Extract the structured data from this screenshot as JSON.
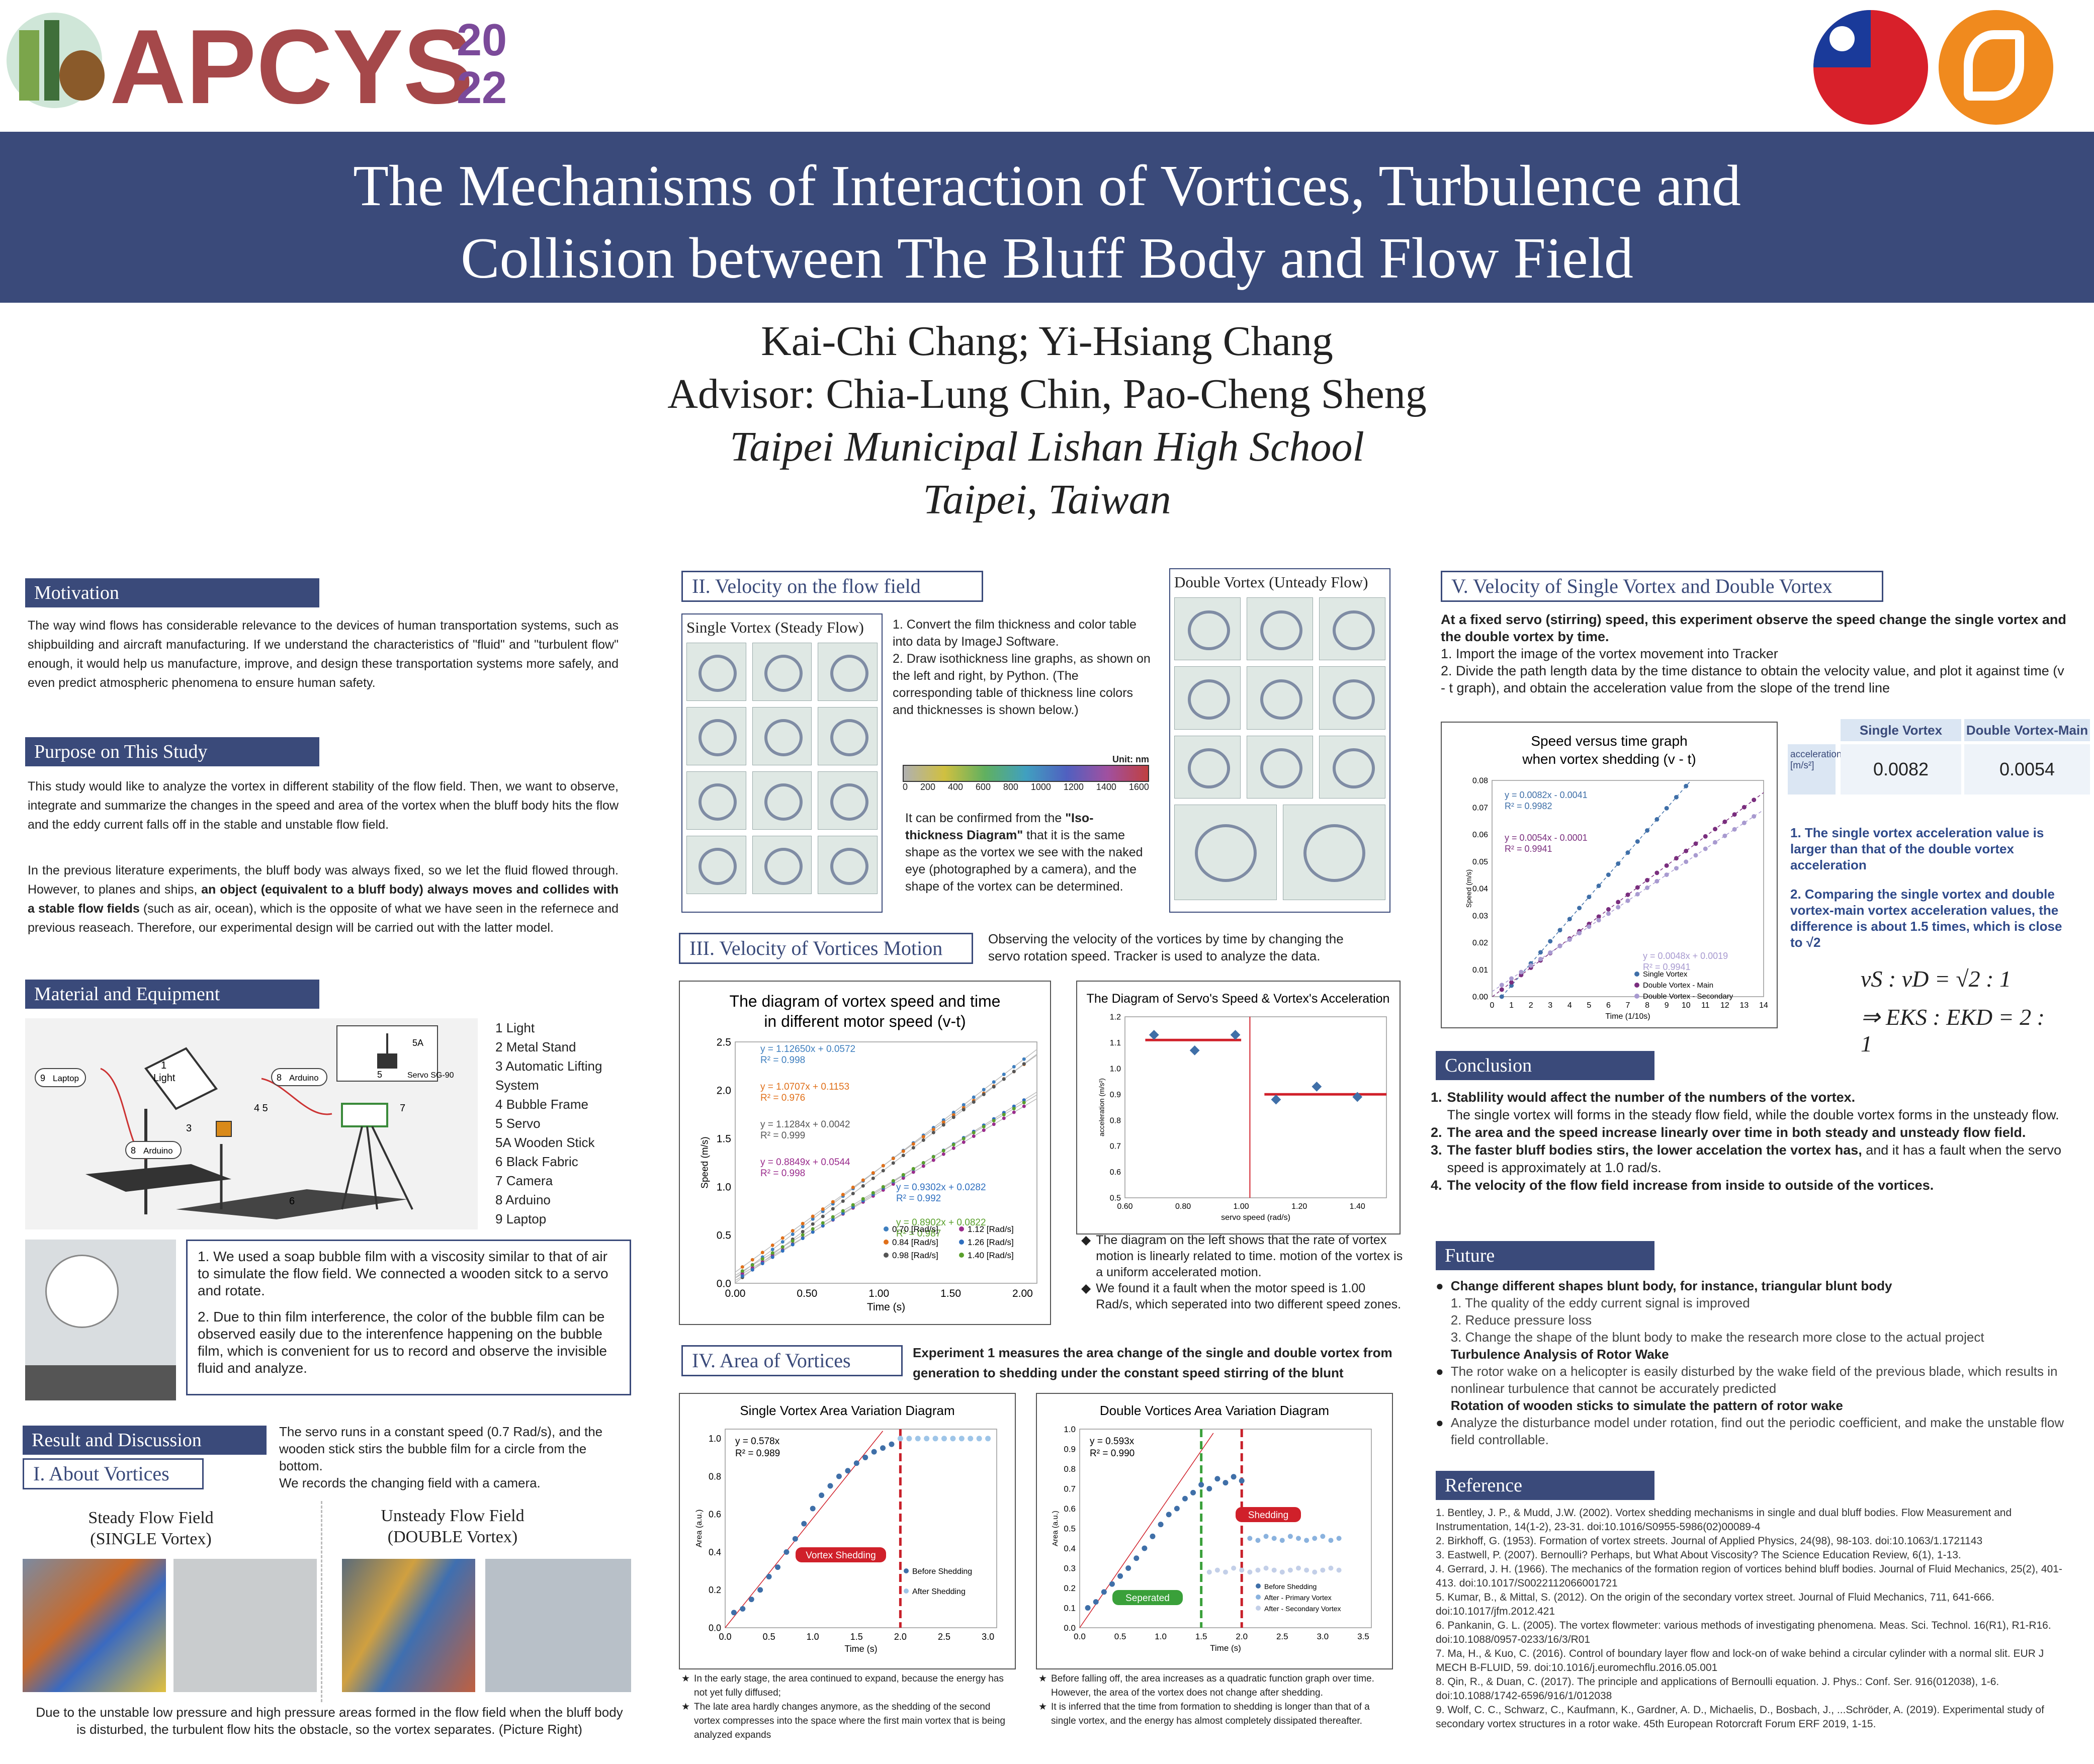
{
  "logo": {
    "text": "APCYS",
    "year_top": "20",
    "year_bottom": "22"
  },
  "title": {
    "line1": "The Mechanisms of Interaction of Vortices, Turbulence and",
    "line2": "Collision between The Bluff Body and Flow Field"
  },
  "authors": {
    "names": "Kai-Chi Chang; Yi-Hsiang Chang",
    "advisor": "Advisor: Chia-Lung Chin, Pao-Cheng Sheng",
    "school": "Taipei Municipal Lishan High School",
    "location": "Taipei, Taiwan"
  },
  "motivation": {
    "header": "Motivation",
    "text": "The way wind flows has considerable relevance to the devices of human transportation systems, such as shipbuilding and aircraft manufacturing. If we understand the characteristics of \"fluid\" and \"turbulent flow\" enough, it would help us manufacture, improve, and design these transportation systems more safely, and even predict atmospheric phenomena to ensure human safety."
  },
  "purpose": {
    "header": "Purpose on This Study",
    "p1": "This study would like to analyze the vortex in different stability of the flow field. Then, we want to observe, integrate and summarize the changes in the speed and area of the vortex when the bluff body hits the flow and the eddy current falls off in the stable and unstable flow field.",
    "p2a": "In the previous literature experiments, the bluff body was always fixed, so we let the fluid flowed through. However, to planes and ships, ",
    "p2b": "an object (equivalent to a bluff body) always moves and collides with a stable flow fields",
    "p2c": " (such as air, ocean), which is the opposite of what we have seen in the refernece and previous reaseach. Therefore, our experimental design will be carried out with the latter model."
  },
  "material": {
    "header": "Material and Equipment",
    "diagram": {
      "laptop": "Laptop",
      "light": "Light",
      "arduino": "Arduino",
      "servo": "Servo SG-90",
      "n1": "1",
      "n3": "3",
      "n45": "4  5",
      "n6": "6",
      "n7": "7",
      "n8": "8",
      "n9": "9",
      "n5": "5",
      "n5a": "5A"
    },
    "items": [
      {
        "num": "1",
        "label": "Light"
      },
      {
        "num": "2",
        "label": "Metal Stand"
      },
      {
        "num": "3",
        "label": "Automatic Lifting System"
      },
      {
        "num": "4",
        "label": "Bubble Frame"
      },
      {
        "num": "5",
        "label": "Servo"
      },
      {
        "num": "5A",
        "label": "Wooden Stick"
      },
      {
        "num": "6",
        "label": "Black Fabric"
      },
      {
        "num": "7",
        "label": "Camera"
      },
      {
        "num": "8",
        "label": "Arduino"
      },
      {
        "num": "9",
        "label": "Laptop"
      }
    ],
    "notes": [
      "1.  We used a soap bubble film with a viscosity similar to that of air to simulate the flow field. We connected a wooden sitck to a servo and rotate.",
      "2.  Due to thin film interference, the color of the bubble film can be observed easily due to the interenfence happening on the bubble film, which is convenient for us to record and observe the invisible fluid and analyze."
    ]
  },
  "result": {
    "header": "Result and Discussion",
    "sub": "I. About Vortices",
    "note": "The servo runs in a constant speed (0.7 Rad/s), and the wooden stick stirs the bubble film for a circle from the bottom.\nWe records the changing field with a camera.",
    "steady_title": "Steady Flow Field",
    "steady_sub": "(SINGLE Vortex)",
    "unsteady_title": "Unsteady Flow Field",
    "unsteady_sub": "(DOUBLE Vortex)",
    "caption": "Due to the unstable low pressure and high pressure areas formed in the flow field when the bluff body is disturbed, the turbulent flow hits the obstacle, so the vortex separates. (Picture Right)"
  },
  "velocity_field": {
    "header": "II. Velocity on the flow field",
    "single_label": "Single Vortex (Steady Flow)",
    "double_label": "Double Vortex (Unteady Flow)",
    "step1": "1.  Convert the film thickness and color table into data by ImageJ Software.",
    "step2": "2.  Draw isothickness line graphs, as shown on the left and right, by Python. (The corresponding table of thickness line colors and thicknesses is shown below.)",
    "unit": "Unit: nm",
    "scale": [
      "0",
      "200",
      "400",
      "600",
      "800",
      "1000",
      "1200",
      "1400",
      "1600"
    ],
    "confirm_a": "It can be confirmed from the ",
    "confirm_b": "\"Iso-thickness Diagram\"",
    "confirm_c": " that it is the same shape as the vortex we see with the naked eye (photographed by a camera), and the shape of the vortex can be determined."
  },
  "motion": {
    "header": "III. Velocity of Vortices Motion",
    "note": "Observing the velocity of the vortices by time by changing the servo rotation speed. Tracker is used to analyze the data.",
    "bullet1": "The diagram on the left shows that the rate of vortex motion is linearly related to time. motion of the vortex is a uniform accelerated motion.",
    "bullet2": "We found it a fault when the motor speed is 1.00 Rad/s, which seperated into two different speed zones."
  },
  "area": {
    "header": "IV. Area of Vortices",
    "note": "Experiment 1 measures the area change of the single and double vortex from generation to shedding under the constant speed stirring of the blunt",
    "single_notes": [
      "In the early stage, the area continued to expand, because the energy has not yet fully diffused;",
      "The late area hardly changes anymore, as the shedding of the second vortex compresses into the space where the first main vortex that is being analyzed expands"
    ],
    "double_notes": [
      "Before falling off, the area increases as a quadratic function graph over time. However, the area of the vortex does not change after shedding.",
      "It is inferred that the time from formation to shedding is longer than that of a single vortex, and the energy has almost completely dissipated thereafter."
    ]
  },
  "section5": {
    "header": "V. Velocity of Single Vortex and Double Vortex",
    "intro": "At a fixed servo (stirring) speed, this experiment observe the speed change the single vortex and the double vortex by time.",
    "step1": "1. Import the image of the vortex movement into Tracker",
    "step2": "2. Divide the path length data by the time distance to obtain the velocity value, and plot it against time (v - t graph), and obtain the acceleration value from the slope of the trend line",
    "table_head1": "Single Vortex",
    "table_head2": "Double Vortex-Main",
    "row_label": "acceleration [m/s²]",
    "val1": "0.0082",
    "val2": "0.0054",
    "point1": "1. The single vortex acceleration value is larger than that of the double vortex acceleration",
    "point2": "2. Comparing the single vortex and double vortex-main vortex acceleration values, the difference is about 1.5 times, which is close to √2",
    "eq1": "vS : vD = √2 : 1",
    "eq2": "⇒ EKS : EKD = 2 : 1"
  },
  "conclusion": {
    "header": "Conclusion",
    "items": [
      {
        "num": "1.",
        "bold": "Stablility would affect the number of the numbers of the vortex.",
        "rest": "The single vortex will forms in the steady flow field, while the double vortex forms in the unsteady flow."
      },
      {
        "num": "2.",
        "bold": "The area and the speed increase linearly over time in both steady and unsteady flow field.",
        "rest": ""
      },
      {
        "num": "3.",
        "bold": "The faster bluff bodies stirs, the lower accelation the vortex has,",
        "rest": " and it has a fault when the servo speed is approximately at 1.0 rad/s."
      },
      {
        "num": "4.",
        "bold": "The velocity of the flow field increase from inside to outside of the vortices.",
        "rest": ""
      }
    ]
  },
  "future": {
    "header": "Future",
    "b1": "Change different shapes blunt body, for instance, triangular blunt body",
    "b1_items": [
      "1. The quality of the eddy current signal is improved",
      "2. Reduce pressure loss",
      "3. Change the shape of the blunt body to make the research more close to the actual project"
    ],
    "b2_title": "Turbulence Analysis of Rotor Wake",
    "b2": "The rotor wake on a helicopter is easily disturbed by the wake field of the previous blade, which results in nonlinear turbulence that cannot be accurately predicted",
    "b3_title": "Rotation of wooden sticks to simulate the pattern of rotor wake",
    "b3": "Analyze the disturbance model under rotation, find out the periodic coefficient, and make the unstable flow field controllable."
  },
  "reference": {
    "header": "Reference",
    "items": [
      "1.  Bentley, J. P., & Mudd, J.W. (2002). Vortex shedding mechanisms in single and dual bluff bodies. Flow Measurement and Instrumentation, 14(1-2), 23-31. doi:10.1016/S0955-5986(02)00089-4",
      "2.  Birkhoff, G. (1953). Formation of vortex streets. Journal of Applied Physics, 24(98), 98-103. doi:10.1063/1.1721143",
      "3.  Eastwell, P. (2007). Bernoulli? Perhaps, but What About Viscosity? The Science Education Review, 6(1), 1-13.",
      "4.  Gerrard, J. H. (1966). The mechanics of the formation region of vortices behind bluff bodies. Journal of Fluid Mechanics, 25(2), 401-413. doi:10.1017/S0022112066001721",
      "5.  Kumar, B., & Mittal, S. (2012). On the origin of the secondary vortex street. Journal of Fluid Mechanics, 711, 641-666. doi:10.1017/jfm.2012.421",
      "6.  Pankanin, G. L. (2005). The vortex flowmeter: various methods of investigating phenomena. Meas. Sci. Technol. 16(R1), R1-R16. doi:10.1088/0957-0233/16/3/R01",
      "7.  Ma, H., & Kuo, C. (2016). Control of boundary layer flow and lock-on of wake behind a circular cylinder with a normal slit. EUR J MECH B-FLUID, 59. doi:10.1016/j.euromechflu.2016.05.001",
      "8.  Qin, R., & Duan, C. (2017). The principle and applications of Bernoulli equation. J. Phys.: Conf. Ser. 916(012038), 1-6. doi:10.1088/1742-6596/916/1/012038",
      "9.  Wolf, C. C., Schwarz, C., Kaufmann, K., Gardner, A. D., Michaelis, D., Bosbach, J., ...Schröder, A. (2019). Experimental study of secondary vortex structures in a rotor wake. 45th European Rotorcraft Forum ERF 2019, 1-15."
    ]
  },
  "chart_data": [
    {
      "type": "scatter",
      "title": "The diagram of vortex speed and time in different motor speed (v-t)",
      "xlabel": "Time (s)",
      "ylabel": "Speed (m/s)",
      "xlim": [
        0,
        2.1
      ],
      "ylim": [
        0,
        2.5
      ],
      "xticks": [
        "0.00",
        "0.50",
        "1.00",
        "1.50",
        "2.00"
      ],
      "yticks": [
        "0.0",
        "0.5",
        "1.0",
        "1.5",
        "2.0",
        "2.5"
      ],
      "series": [
        {
          "name": "0.70 [Rad/s]",
          "color": "#3f7fbf",
          "slope": 1.1265,
          "intercept": 0.0572,
          "eq": "y = 1.12650x + 0.0572",
          "r2": "R² = 0.998"
        },
        {
          "name": "0.84 [Rad/s]",
          "color": "#e0701a",
          "slope": 1.0707,
          "intercept": 0.1153,
          "eq": "y = 1.0707x + 0.1153",
          "r2": "R² = 0.976"
        },
        {
          "name": "0.98 [Rad/s]",
          "color": "#555555",
          "slope": 1.1284,
          "intercept": 0.0042,
          "eq": "y = 1.1284x + 0.0042",
          "r2": "R² = 0.999"
        },
        {
          "name": "1.12 [Rad/s]",
          "color": "#9a2c8c",
          "slope": 0.8849,
          "intercept": 0.0544,
          "eq": "y = 0.8849x + 0.0544",
          "r2": "R² = 0.998"
        },
        {
          "name": "1.26 [Rad/s]",
          "color": "#2f6fbf",
          "slope": 0.9302,
          "intercept": 0.0282,
          "eq": "y = 0.9302x + 0.0282",
          "r2": "R² = 0.992"
        },
        {
          "name": "1.40 [Rad/s]",
          "color": "#5aa02c",
          "slope": 0.8902,
          "intercept": 0.0822,
          "eq": "y = 0.8902x + 0.0822",
          "r2": "R² = 0.987"
        }
      ]
    },
    {
      "type": "scatter",
      "title": "The Diagram of Servo's Speed & Vortex's Acceleration",
      "xlabel": "servo speed  (rad/s)",
      "ylabel": "acceleration (m/s²)",
      "xlim": [
        0.6,
        1.5
      ],
      "ylim": [
        0.5,
        1.2
      ],
      "xticks": [
        "0.60",
        "0.80",
        "1.00",
        "1.20",
        "1.40"
      ],
      "yticks": [
        "0.5",
        "0.6",
        "0.7",
        "0.8",
        "0.9",
        "1.0",
        "1.1",
        "1.2"
      ],
      "x": [
        0.7,
        0.84,
        0.98,
        1.12,
        1.26,
        1.4
      ],
      "y": [
        1.13,
        1.07,
        1.13,
        0.88,
        0.93,
        0.89
      ]
    },
    {
      "type": "scatter",
      "title": "Single Vortex Area Variation Diagram",
      "xlabel": "Time (s)",
      "ylabel": "Area (a.u.)",
      "xlim": [
        0,
        3.1
      ],
      "ylim": [
        0,
        1.05
      ],
      "xticks": [
        "0.0",
        "0.5",
        "1.0",
        "1.5",
        "2.0",
        "2.5",
        "3.0"
      ],
      "yticks": [
        "0.0",
        "0.2",
        "0.4",
        "0.6",
        "0.8",
        "1.0"
      ],
      "eq": "y = 0.578x",
      "r2": "R² = 0.989",
      "annotation": "Vortex Shedding",
      "legend": [
        "Before Shedding",
        "After Shedding"
      ],
      "before": {
        "x": [
          0.1,
          0.2,
          0.3,
          0.4,
          0.5,
          0.6,
          0.7,
          0.8,
          0.9,
          1.0,
          1.1,
          1.2,
          1.3,
          1.4,
          1.5,
          1.6,
          1.7,
          1.8,
          1.9
        ],
        "y": [
          0.08,
          0.1,
          0.15,
          0.2,
          0.27,
          0.32,
          0.4,
          0.47,
          0.55,
          0.63,
          0.7,
          0.75,
          0.8,
          0.83,
          0.87,
          0.9,
          0.93,
          0.95,
          0.97
        ]
      },
      "after": {
        "x": [
          2.0,
          2.1,
          2.2,
          2.3,
          2.4,
          2.5,
          2.6,
          2.7,
          2.8,
          2.9,
          3.0
        ],
        "y": [
          1.0,
          1.0,
          1.0,
          1.0,
          1.0,
          1.0,
          1.0,
          1.0,
          1.0,
          1.0,
          1.0
        ]
      }
    },
    {
      "type": "scatter",
      "title": "Double Vortices Area Variation Diagram",
      "xlabel": "Time (s)",
      "ylabel": "Area (a.u.)",
      "xlim": [
        0,
        3.6
      ],
      "ylim": [
        0,
        1.0
      ],
      "xticks": [
        "0.0",
        "0.5",
        "1.0",
        "1.5",
        "2.0",
        "2.5",
        "3.0",
        "3.5"
      ],
      "yticks": [
        "0.0",
        "0.1",
        "0.2",
        "0.3",
        "0.4",
        "0.5",
        "0.6",
        "0.7",
        "0.8",
        "0.9",
        "1.0"
      ],
      "eq": "y = 0.593x",
      "r2": "R² = 0.990",
      "annotations": [
        "Seperated",
        "Shedding"
      ],
      "legend": [
        "Before Shedding",
        "After - Primary Vortex",
        "After - Secondary Vortex"
      ],
      "before": {
        "x": [
          0.1,
          0.2,
          0.3,
          0.4,
          0.5,
          0.6,
          0.7,
          0.8,
          0.9,
          1.0,
          1.1,
          1.2,
          1.3,
          1.4,
          1.5,
          1.6,
          1.7,
          1.8,
          1.9,
          2.0
        ],
        "y": [
          0.1,
          0.13,
          0.18,
          0.22,
          0.26,
          0.3,
          0.35,
          0.4,
          0.46,
          0.52,
          0.57,
          0.6,
          0.65,
          0.68,
          0.72,
          0.7,
          0.75,
          0.73,
          0.76,
          0.74
        ]
      },
      "primary": {
        "x": [
          2.1,
          2.2,
          2.3,
          2.4,
          2.5,
          2.6,
          2.7,
          2.8,
          2.9,
          3.0,
          3.1,
          3.2
        ],
        "y": [
          0.45,
          0.44,
          0.46,
          0.45,
          0.44,
          0.46,
          0.45,
          0.44,
          0.45,
          0.46,
          0.44,
          0.45
        ]
      },
      "secondary": {
        "x": [
          1.6,
          1.7,
          1.8,
          1.9,
          2.0,
          2.1,
          2.2,
          2.3,
          2.4,
          2.5,
          2.6,
          2.7,
          2.8,
          2.9,
          3.0,
          3.1,
          3.2
        ],
        "y": [
          0.28,
          0.29,
          0.28,
          0.3,
          0.29,
          0.28,
          0.29,
          0.3,
          0.29,
          0.28,
          0.29,
          0.3,
          0.29,
          0.28,
          0.29,
          0.3,
          0.29
        ]
      }
    },
    {
      "type": "scatter",
      "title": "Speed versus time graph when vortex shedding (v - t)",
      "xlabel": "Time (1/10s)",
      "ylabel": "Speed (m/s)",
      "xlim": [
        0,
        14
      ],
      "ylim": [
        0,
        0.08
      ],
      "xticks": [
        "0",
        "1",
        "2",
        "3",
        "4",
        "5",
        "6",
        "7",
        "8",
        "9",
        "10",
        "11",
        "12",
        "13",
        "14"
      ],
      "yticks": [
        "0.00",
        "0.01",
        "0.02",
        "0.03",
        "0.04",
        "0.05",
        "0.06",
        "0.07",
        "0.08"
      ],
      "series": [
        {
          "name": "Single Vortex",
          "color": "#3f6fa8",
          "slope": 0.0082,
          "intercept": -0.0041,
          "eq": "y = 0.0082x - 0.0041",
          "r2": "R² = 0.9982"
        },
        {
          "name": "Double Vortex - Main",
          "color": "#7a2e7e",
          "slope": 0.0054,
          "intercept": -0.0001,
          "eq": "y = 0.0054x - 0.0001",
          "r2": "R² = 0.9941"
        },
        {
          "name": "Double Vortex - Secondary",
          "color": "#a89ad0",
          "slope": 0.0048,
          "intercept": 0.0019,
          "eq": "y = 0.0048x + 0.0019",
          "r2": "R² = 0.9941"
        }
      ]
    }
  ]
}
